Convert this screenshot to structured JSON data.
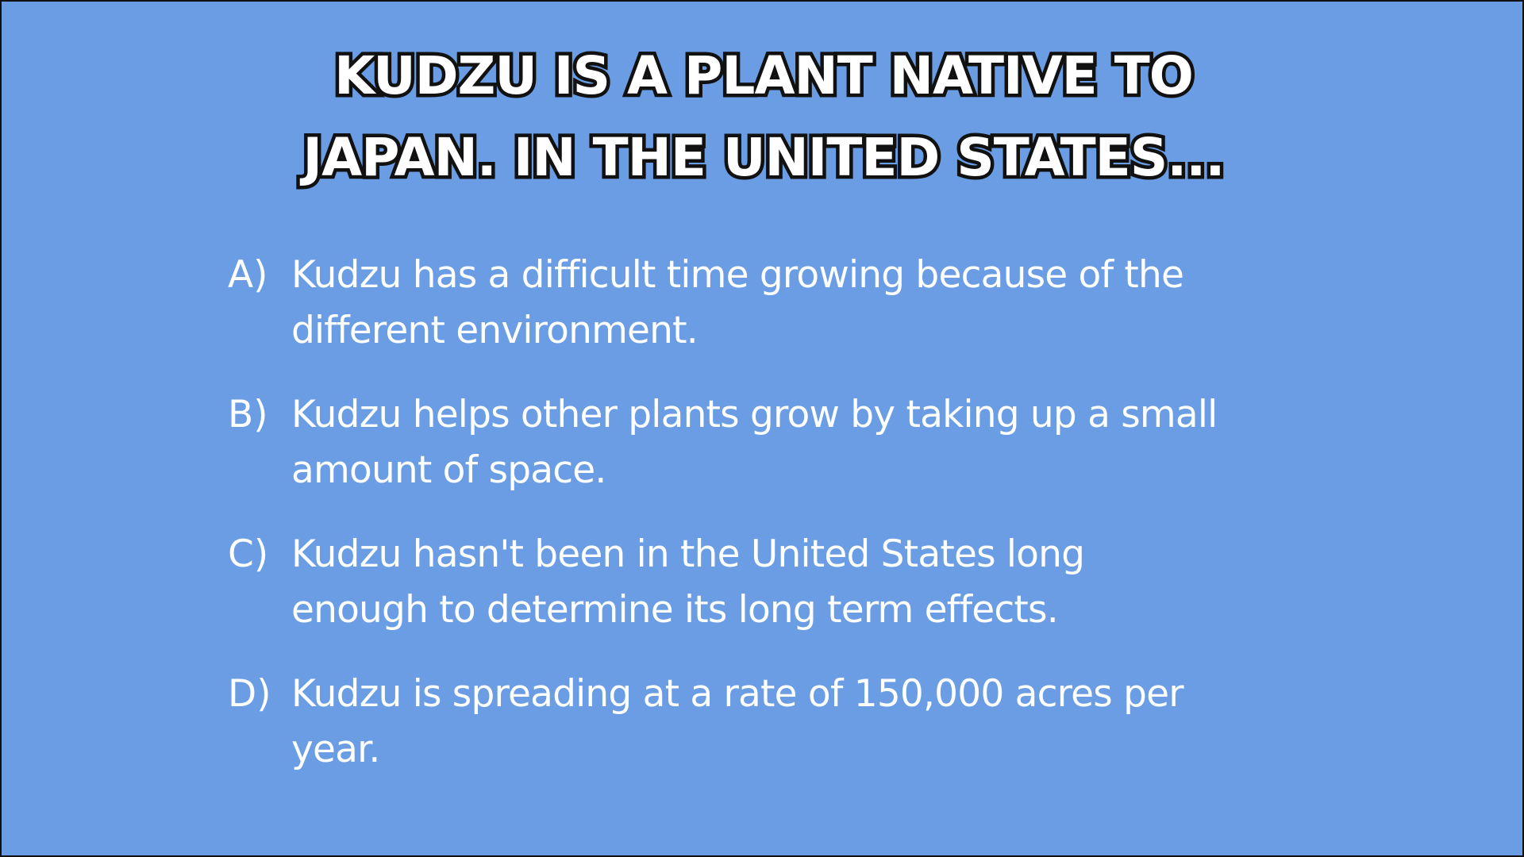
{
  "slide": {
    "background_color": "#6a9de4",
    "title_lines": [
      "KUDZU IS A PLANT NATIVE TO",
      "JAPAN. IN THE UNITED STATES..."
    ],
    "options": [
      {
        "letter": "A)",
        "lines": [
          "Kudzu has a difficult time growing because of the",
          "different environment."
        ]
      },
      {
        "letter": "B)",
        "lines": [
          "Kudzu helps other plants grow by taking up a small",
          "amount of space."
        ]
      },
      {
        "letter": "C)",
        "lines": [
          "Kudzu hasn't been in the United States long",
          "enough to determine its long term effects."
        ]
      },
      {
        "letter": "D)",
        "lines": [
          "Kudzu is spreading at a rate of 150,000 acres per",
          "year."
        ]
      }
    ]
  }
}
